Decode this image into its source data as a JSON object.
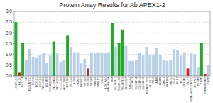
{
  "chart_data": {
    "type": "bar",
    "title": "Protein Array Results for Ab APEX1-2",
    "categories": [
      "CORL-23",
      "HL-60",
      "MOLT-4",
      "SR",
      "A549/ATCC",
      "EKVX",
      "HOP-62",
      "HOP-92",
      "NCI-H226",
      "NCI-H23",
      "NCI-H322M",
      "NCI-H460",
      "NCI-H522",
      "COLO205",
      "HCC-2998",
      "HCT-116",
      "HCT-15",
      "HT29",
      "KM12",
      "SW-620",
      "SF-268",
      "SF-295",
      "SF-539",
      "SNB-19",
      "SNB-75",
      "U251",
      "LOX IMVI",
      "MALME-3M",
      "M14",
      "SK-MEL-2",
      "SK-MEL-28",
      "SK-MEL-5",
      "UACC-257",
      "UACC-62",
      "OVCAR-3",
      "OVCAR-4",
      "OVCAR-5",
      "OVCAR-8",
      "NCI/ADR-RES",
      "SK-OV-3",
      "786-0",
      "A498",
      "ACHN",
      "CAKI-1",
      "RXF393",
      "SN12C",
      "TK-10",
      "UO-31",
      "PC-3",
      "DU-145",
      "MCF7",
      "MDA-MB-231/ATCC",
      "HS 578T",
      "BT-549",
      "T-47D",
      "MDA-MB-468",
      "T-47D"
    ],
    "values": [
      2.5,
      0.15,
      1.55,
      0.75,
      1.25,
      0.9,
      0.85,
      0.95,
      1.05,
      0.6,
      0.95,
      1.6,
      1.05,
      0.65,
      0.75,
      1.9,
      1.35,
      1.1,
      1.1,
      0.6,
      0.8,
      0.35,
      1.1,
      1.05,
      1.1,
      1.1,
      1.05,
      1.1,
      2.45,
      1.35,
      1.55,
      2.15,
      1.4,
      0.7,
      0.7,
      0.75,
      1.05,
      0.95,
      1.35,
      1.0,
      0.95,
      1.3,
      1.0,
      0.75,
      0.7,
      0.75,
      1.25,
      1.2,
      0.95,
      1.1,
      0.35,
      1.05,
      1.0,
      0.4,
      1.55,
      0.1,
      0.5
    ],
    "colors": [
      "#22aa22",
      "#cc2222",
      "#22aa22",
      "#b8d0e8",
      "#b8d0e8",
      "#b8d0e8",
      "#b8d0e8",
      "#b8d0e8",
      "#b8d0e8",
      "#b8d0e8",
      "#b8d0e8",
      "#22aa22",
      "#b8d0e8",
      "#b8d0e8",
      "#b8d0e8",
      "#22aa22",
      "#b8d0e8",
      "#b8d0e8",
      "#b8d0e8",
      "#b8d0e8",
      "#b8d0e8",
      "#cc2222",
      "#b8d0e8",
      "#b8d0e8",
      "#b8d0e8",
      "#b8d0e8",
      "#b8d0e8",
      "#b8d0e8",
      "#22aa22",
      "#b8d0e8",
      "#22aa22",
      "#22aa22",
      "#b8d0e8",
      "#b8d0e8",
      "#b8d0e8",
      "#b8d0e8",
      "#b8d0e8",
      "#b8d0e8",
      "#b8d0e8",
      "#b8d0e8",
      "#b8d0e8",
      "#b8d0e8",
      "#b8d0e8",
      "#b8d0e8",
      "#b8d0e8",
      "#b8d0e8",
      "#b8d0e8",
      "#b8d0e8",
      "#b8d0e8",
      "#b8d0e8",
      "#cc2222",
      "#b8d0e8",
      "#b8d0e8",
      "#b8d0e8",
      "#22aa22",
      "#cc2222",
      "#b8d0e8"
    ],
    "ylim": [
      0.0,
      3.0
    ],
    "yticks": [
      {
        "value": 0.0,
        "label": "0.0"
      },
      0.5,
      {
        "value": 1.0,
        "label": "1.0"
      },
      1.5,
      {
        "value": 2.0,
        "label": "2.0"
      },
      2.5,
      {
        "value": 3.0,
        "label": "3.0"
      }
    ],
    "grid": true
  }
}
